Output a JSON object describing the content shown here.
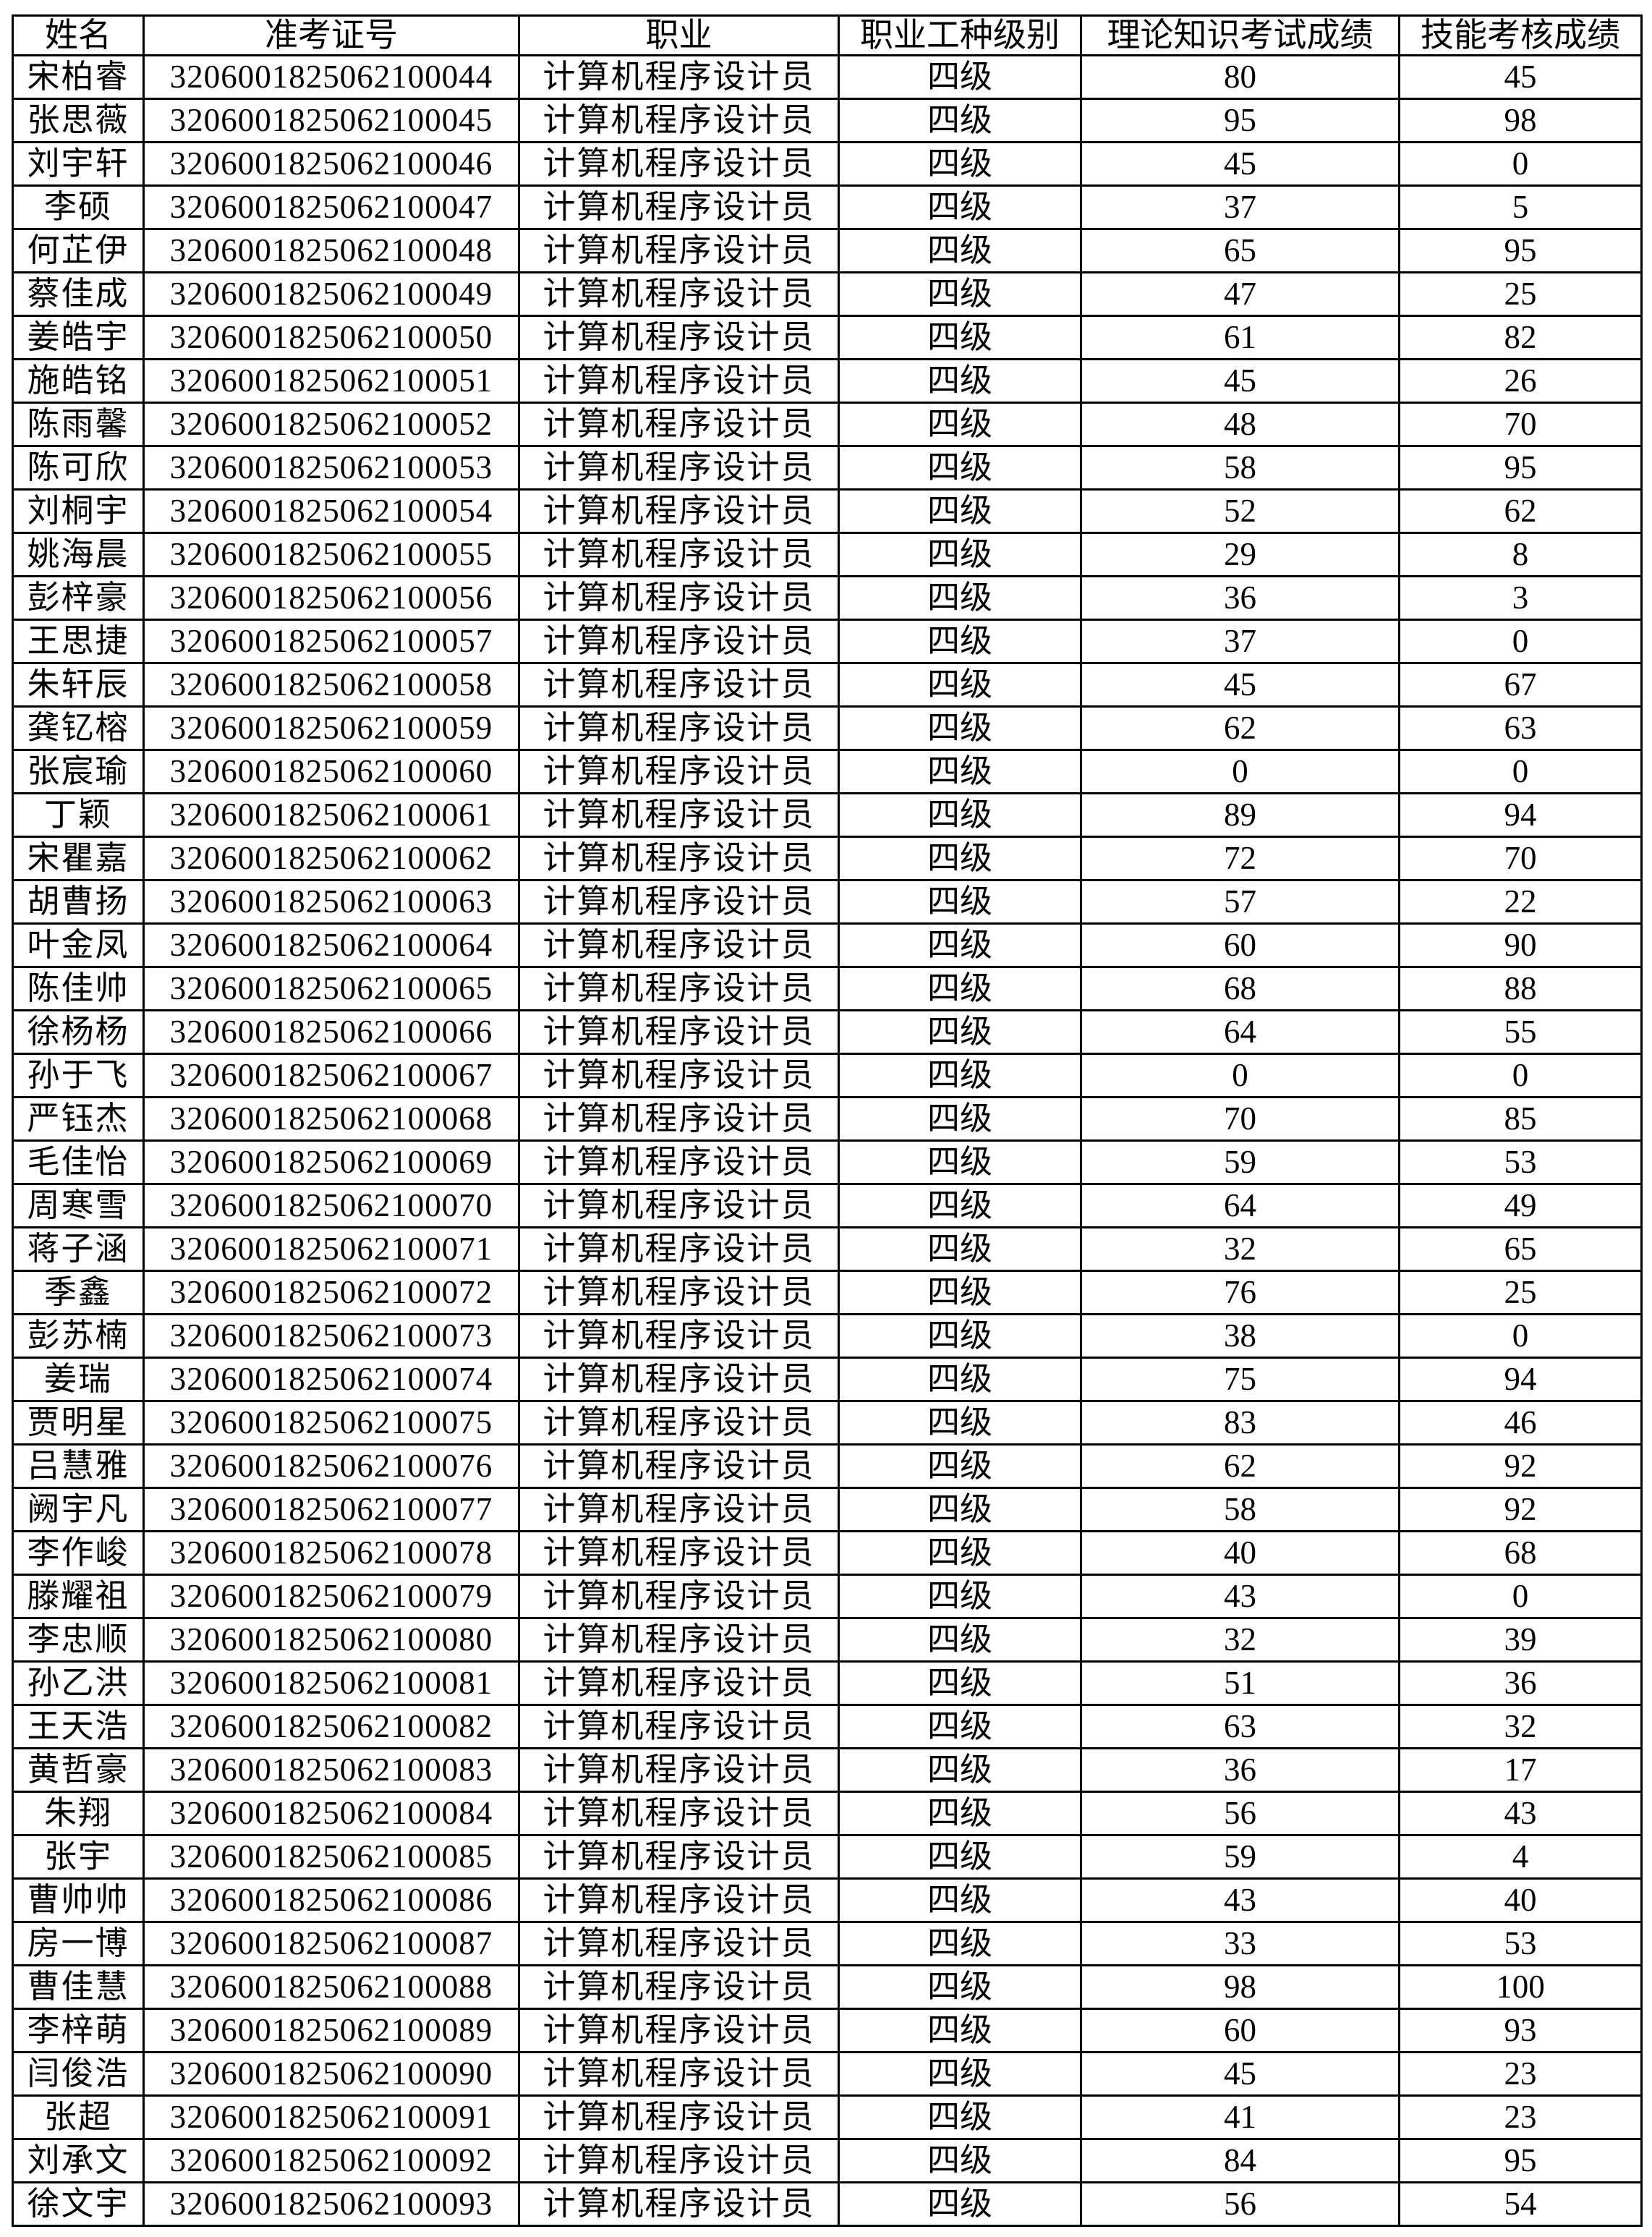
{
  "table": {
    "headers": [
      "姓名",
      "准考证号",
      "职业",
      "职业工种级别",
      "理论知识考试成绩",
      "技能考核成绩"
    ],
    "rows": [
      [
        "宋柏睿",
        "320600182506210004​4",
        "计算机程序设计员",
        "四级",
        "80",
        "45"
      ],
      [
        "张思薇",
        "3206001825062100045",
        "计算机程序设计员",
        "四级",
        "95",
        "98"
      ],
      [
        "刘宇轩",
        "3206001825062100046",
        "计算机程序设计员",
        "四级",
        "45",
        "0"
      ],
      [
        "李硕",
        "3206001825062100047",
        "计算机程序设计员",
        "四级",
        "37",
        "5"
      ],
      [
        "何芷伊",
        "3206001825062100048",
        "计算机程序设计员",
        "四级",
        "65",
        "95"
      ],
      [
        "蔡佳成",
        "3206001825062100049",
        "计算机程序设计员",
        "四级",
        "47",
        "25"
      ],
      [
        "姜皓宇",
        "3206001825062100050",
        "计算机程序设计员",
        "四级",
        "61",
        "82"
      ],
      [
        "施皓铭",
        "3206001825062100051",
        "计算机程序设计员",
        "四级",
        "45",
        "26"
      ],
      [
        "陈雨馨",
        "3206001825062100052",
        "计算机程序设计员",
        "四级",
        "48",
        "70"
      ],
      [
        "陈可欣",
        "3206001825062100053",
        "计算机程序设计员",
        "四级",
        "58",
        "95"
      ],
      [
        "刘桐宇",
        "3206001825062100054",
        "计算机程序设计员",
        "四级",
        "52",
        "62"
      ],
      [
        "姚海晨",
        "3206001825062100055",
        "计算机程序设计员",
        "四级",
        "29",
        "8"
      ],
      [
        "彭梓豪",
        "3206001825062100056",
        "计算机程序设计员",
        "四级",
        "36",
        "3"
      ],
      [
        "王思捷",
        "3206001825062100057",
        "计算机程序设计员",
        "四级",
        "37",
        "0"
      ],
      [
        "朱轩辰",
        "3206001825062100058",
        "计算机程序设计员",
        "四级",
        "45",
        "67"
      ],
      [
        "龚钇榕",
        "3206001825062100059",
        "计算机程序设计员",
        "四级",
        "62",
        "63"
      ],
      [
        "张宸瑜",
        "3206001825062100060",
        "计算机程序设计员",
        "四级",
        "0",
        "0"
      ],
      [
        "丁颖",
        "3206001825062100061",
        "计算机程序设计员",
        "四级",
        "89",
        "94"
      ],
      [
        "宋瞿嘉",
        "3206001825062100062",
        "计算机程序设计员",
        "四级",
        "72",
        "70"
      ],
      [
        "胡曹扬",
        "3206001825062100063",
        "计算机程序设计员",
        "四级",
        "57",
        "22"
      ],
      [
        "叶金凤",
        "3206001825062100064",
        "计算机程序设计员",
        "四级",
        "60",
        "90"
      ],
      [
        "陈佳帅",
        "3206001825062100065",
        "计算机程序设计员",
        "四级",
        "68",
        "88"
      ],
      [
        "徐杨杨",
        "3206001825062100066",
        "计算机程序设计员",
        "四级",
        "64",
        "55"
      ],
      [
        "孙于飞",
        "3206001825062100067",
        "计算机程序设计员",
        "四级",
        "0",
        "0"
      ],
      [
        "严钰杰",
        "3206001825062100068",
        "计算机程序设计员",
        "四级",
        "70",
        "85"
      ],
      [
        "毛佳怡",
        "3206001825062100069",
        "计算机程序设计员",
        "四级",
        "59",
        "53"
      ],
      [
        "周寒雪",
        "3206001825062100070",
        "计算机程序设计员",
        "四级",
        "64",
        "49"
      ],
      [
        "蒋子涵",
        "3206001825062100071",
        "计算机程序设计员",
        "四级",
        "32",
        "65"
      ],
      [
        "季鑫",
        "3206001825062100072",
        "计算机程序设计员",
        "四级",
        "76",
        "25"
      ],
      [
        "彭苏楠",
        "3206001825062100073",
        "计算机程序设计员",
        "四级",
        "38",
        "0"
      ],
      [
        "姜瑞",
        "3206001825062100074",
        "计算机程序设计员",
        "四级",
        "75",
        "94"
      ],
      [
        "贾明星",
        "3206001825062100075",
        "计算机程序设计员",
        "四级",
        "83",
        "46"
      ],
      [
        "吕慧雅",
        "3206001825062100076",
        "计算机程序设计员",
        "四级",
        "62",
        "92"
      ],
      [
        "阙宇凡",
        "3206001825062100077",
        "计算机程序设计员",
        "四级",
        "58",
        "92"
      ],
      [
        "李作峻",
        "3206001825062100078",
        "计算机程序设计员",
        "四级",
        "40",
        "68"
      ],
      [
        "滕耀祖",
        "3206001825062100079",
        "计算机程序设计员",
        "四级",
        "43",
        "0"
      ],
      [
        "李忠顺",
        "3206001825062100080",
        "计算机程序设计员",
        "四级",
        "32",
        "39"
      ],
      [
        "孙乙洪",
        "3206001825062100081",
        "计算机程序设计员",
        "四级",
        "51",
        "36"
      ],
      [
        "王天浩",
        "3206001825062100082",
        "计算机程序设计员",
        "四级",
        "63",
        "32"
      ],
      [
        "黄哲豪",
        "3206001825062100083",
        "计算机程序设计员",
        "四级",
        "36",
        "17"
      ],
      [
        "朱翔",
        "3206001825062100084",
        "计算机程序设计员",
        "四级",
        "56",
        "43"
      ],
      [
        "张宇",
        "3206001825062100085",
        "计算机程序设计员",
        "四级",
        "59",
        "4"
      ],
      [
        "曹帅帅",
        "3206001825062100086",
        "计算机程序设计员",
        "四级",
        "43",
        "40"
      ],
      [
        "房一博",
        "3206001825062100087",
        "计算机程序设计员",
        "四级",
        "33",
        "53"
      ],
      [
        "曹佳慧",
        "3206001825062100088",
        "计算机程序设计员",
        "四级",
        "98",
        "100"
      ],
      [
        "李梓萌",
        "3206001825062100089",
        "计算机程序设计员",
        "四级",
        "60",
        "93"
      ],
      [
        "闫俊浩",
        "3206001825062100090",
        "计算机程序设计员",
        "四级",
        "45",
        "23"
      ],
      [
        "张超",
        "3206001825062100091",
        "计算机程序设计员",
        "四级",
        "41",
        "23"
      ],
      [
        "刘承文",
        "3206001825062100092",
        "计算机程序设计员",
        "四级",
        "84",
        "95"
      ],
      [
        "徐文宇",
        "3206001825062100093",
        "计算机程序设计员",
        "四级",
        "56",
        "54"
      ]
    ]
  }
}
